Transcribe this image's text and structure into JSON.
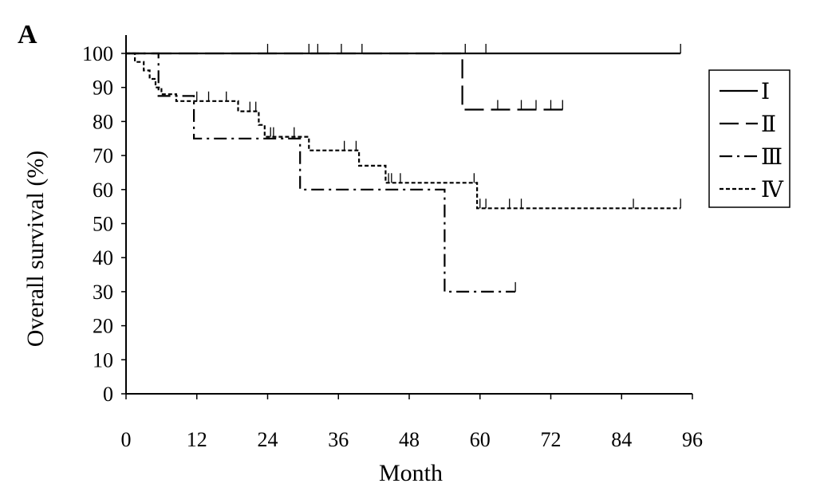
{
  "panel_label": "A",
  "chart_data": {
    "type": "line",
    "subtype": "kaplan-meier step",
    "xlabel": "Month",
    "ylabel": "Overall survival (%)",
    "xlim": [
      0,
      96
    ],
    "ylim": [
      0,
      100
    ],
    "xticks": [
      0,
      12,
      24,
      36,
      48,
      60,
      72,
      84,
      96
    ],
    "yticks": [
      0,
      10,
      20,
      30,
      40,
      50,
      60,
      70,
      80,
      90,
      100
    ],
    "grid": false,
    "legend_position": "right",
    "series": [
      {
        "name": "Ⅰ",
        "dash": "solid",
        "steps": [
          [
            0,
            100
          ],
          [
            94,
            100
          ]
        ],
        "censored": [
          24,
          31,
          32.5,
          36.5,
          40,
          57.5,
          61,
          94
        ]
      },
      {
        "name": "Ⅱ",
        "dash": "long-dash",
        "steps": [
          [
            0,
            100
          ],
          [
            57,
            100
          ],
          [
            57,
            83.5
          ],
          [
            74.5,
            83.5
          ]
        ],
        "censored": [
          63,
          67,
          69.5,
          72,
          74
        ]
      },
      {
        "name": "Ⅲ",
        "dash": "dash-dot",
        "steps": [
          [
            0,
            100
          ],
          [
            5.5,
            100
          ],
          [
            5.5,
            87.5
          ],
          [
            11.5,
            87.5
          ],
          [
            11.5,
            75
          ],
          [
            29.5,
            75
          ],
          [
            29.5,
            60
          ],
          [
            54,
            60
          ],
          [
            54,
            30
          ],
          [
            66,
            30
          ]
        ],
        "censored": [
          66
        ]
      },
      {
        "name": "Ⅳ",
        "dash": "short-dash",
        "steps": [
          [
            0,
            100
          ],
          [
            1.5,
            100
          ],
          [
            1.5,
            97.5
          ],
          [
            3,
            97.5
          ],
          [
            3,
            95
          ],
          [
            4,
            95
          ],
          [
            4,
            92.5
          ],
          [
            5,
            92.5
          ],
          [
            5,
            90
          ],
          [
            6,
            90
          ],
          [
            6,
            88
          ],
          [
            8.5,
            88
          ],
          [
            8.5,
            86
          ],
          [
            19,
            86
          ],
          [
            19,
            83
          ],
          [
            22.5,
            83
          ],
          [
            22.5,
            79
          ],
          [
            23.5,
            79
          ],
          [
            23.5,
            75.5
          ],
          [
            31,
            75.5
          ],
          [
            31,
            71.5
          ],
          [
            39.5,
            71.5
          ],
          [
            39.5,
            67
          ],
          [
            44,
            67
          ],
          [
            44,
            62
          ],
          [
            59.5,
            62
          ],
          [
            59.5,
            54.5
          ],
          [
            94,
            54.5
          ]
        ],
        "censored": [
          12,
          14,
          17,
          21,
          22,
          24.5,
          25,
          28.5,
          37,
          39,
          44.5,
          45,
          46.5,
          59,
          60,
          61,
          65,
          67,
          86,
          94
        ]
      }
    ]
  }
}
